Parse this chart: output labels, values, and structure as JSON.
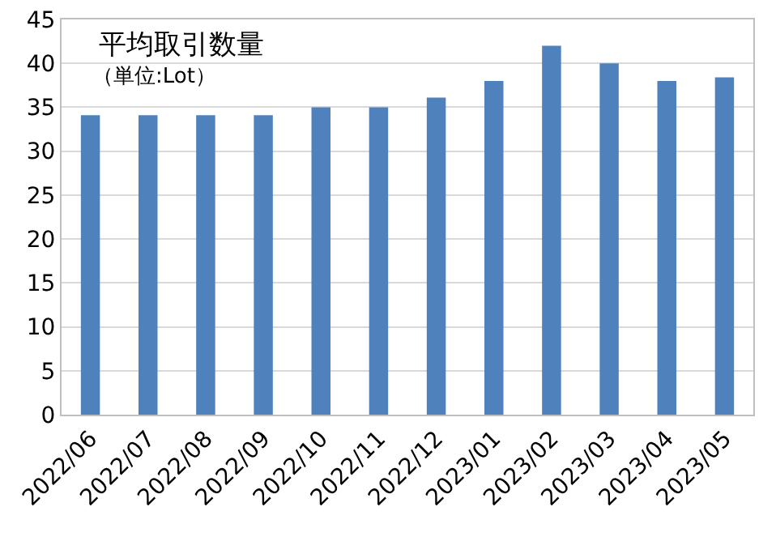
{
  "chart_data": {
    "type": "bar",
    "title": "平均取引数量",
    "subtitle": "（単位:Lot）",
    "categories": [
      "2022/06",
      "2022/07",
      "2022/08",
      "2022/09",
      "2022/10",
      "2022/11",
      "2022/12",
      "2023/01",
      "2023/02",
      "2023/03",
      "2023/04",
      "2023/05"
    ],
    "values": [
      34.1,
      34.1,
      34.1,
      34.1,
      35,
      35,
      36.1,
      38,
      42,
      40,
      38,
      38.4
    ],
    "color": "#4f81bd",
    "ylim": [
      0,
      45
    ],
    "yticks": [
      0,
      5,
      10,
      15,
      20,
      25,
      30,
      35,
      40,
      45
    ],
    "grid": "y",
    "legend": false
  }
}
